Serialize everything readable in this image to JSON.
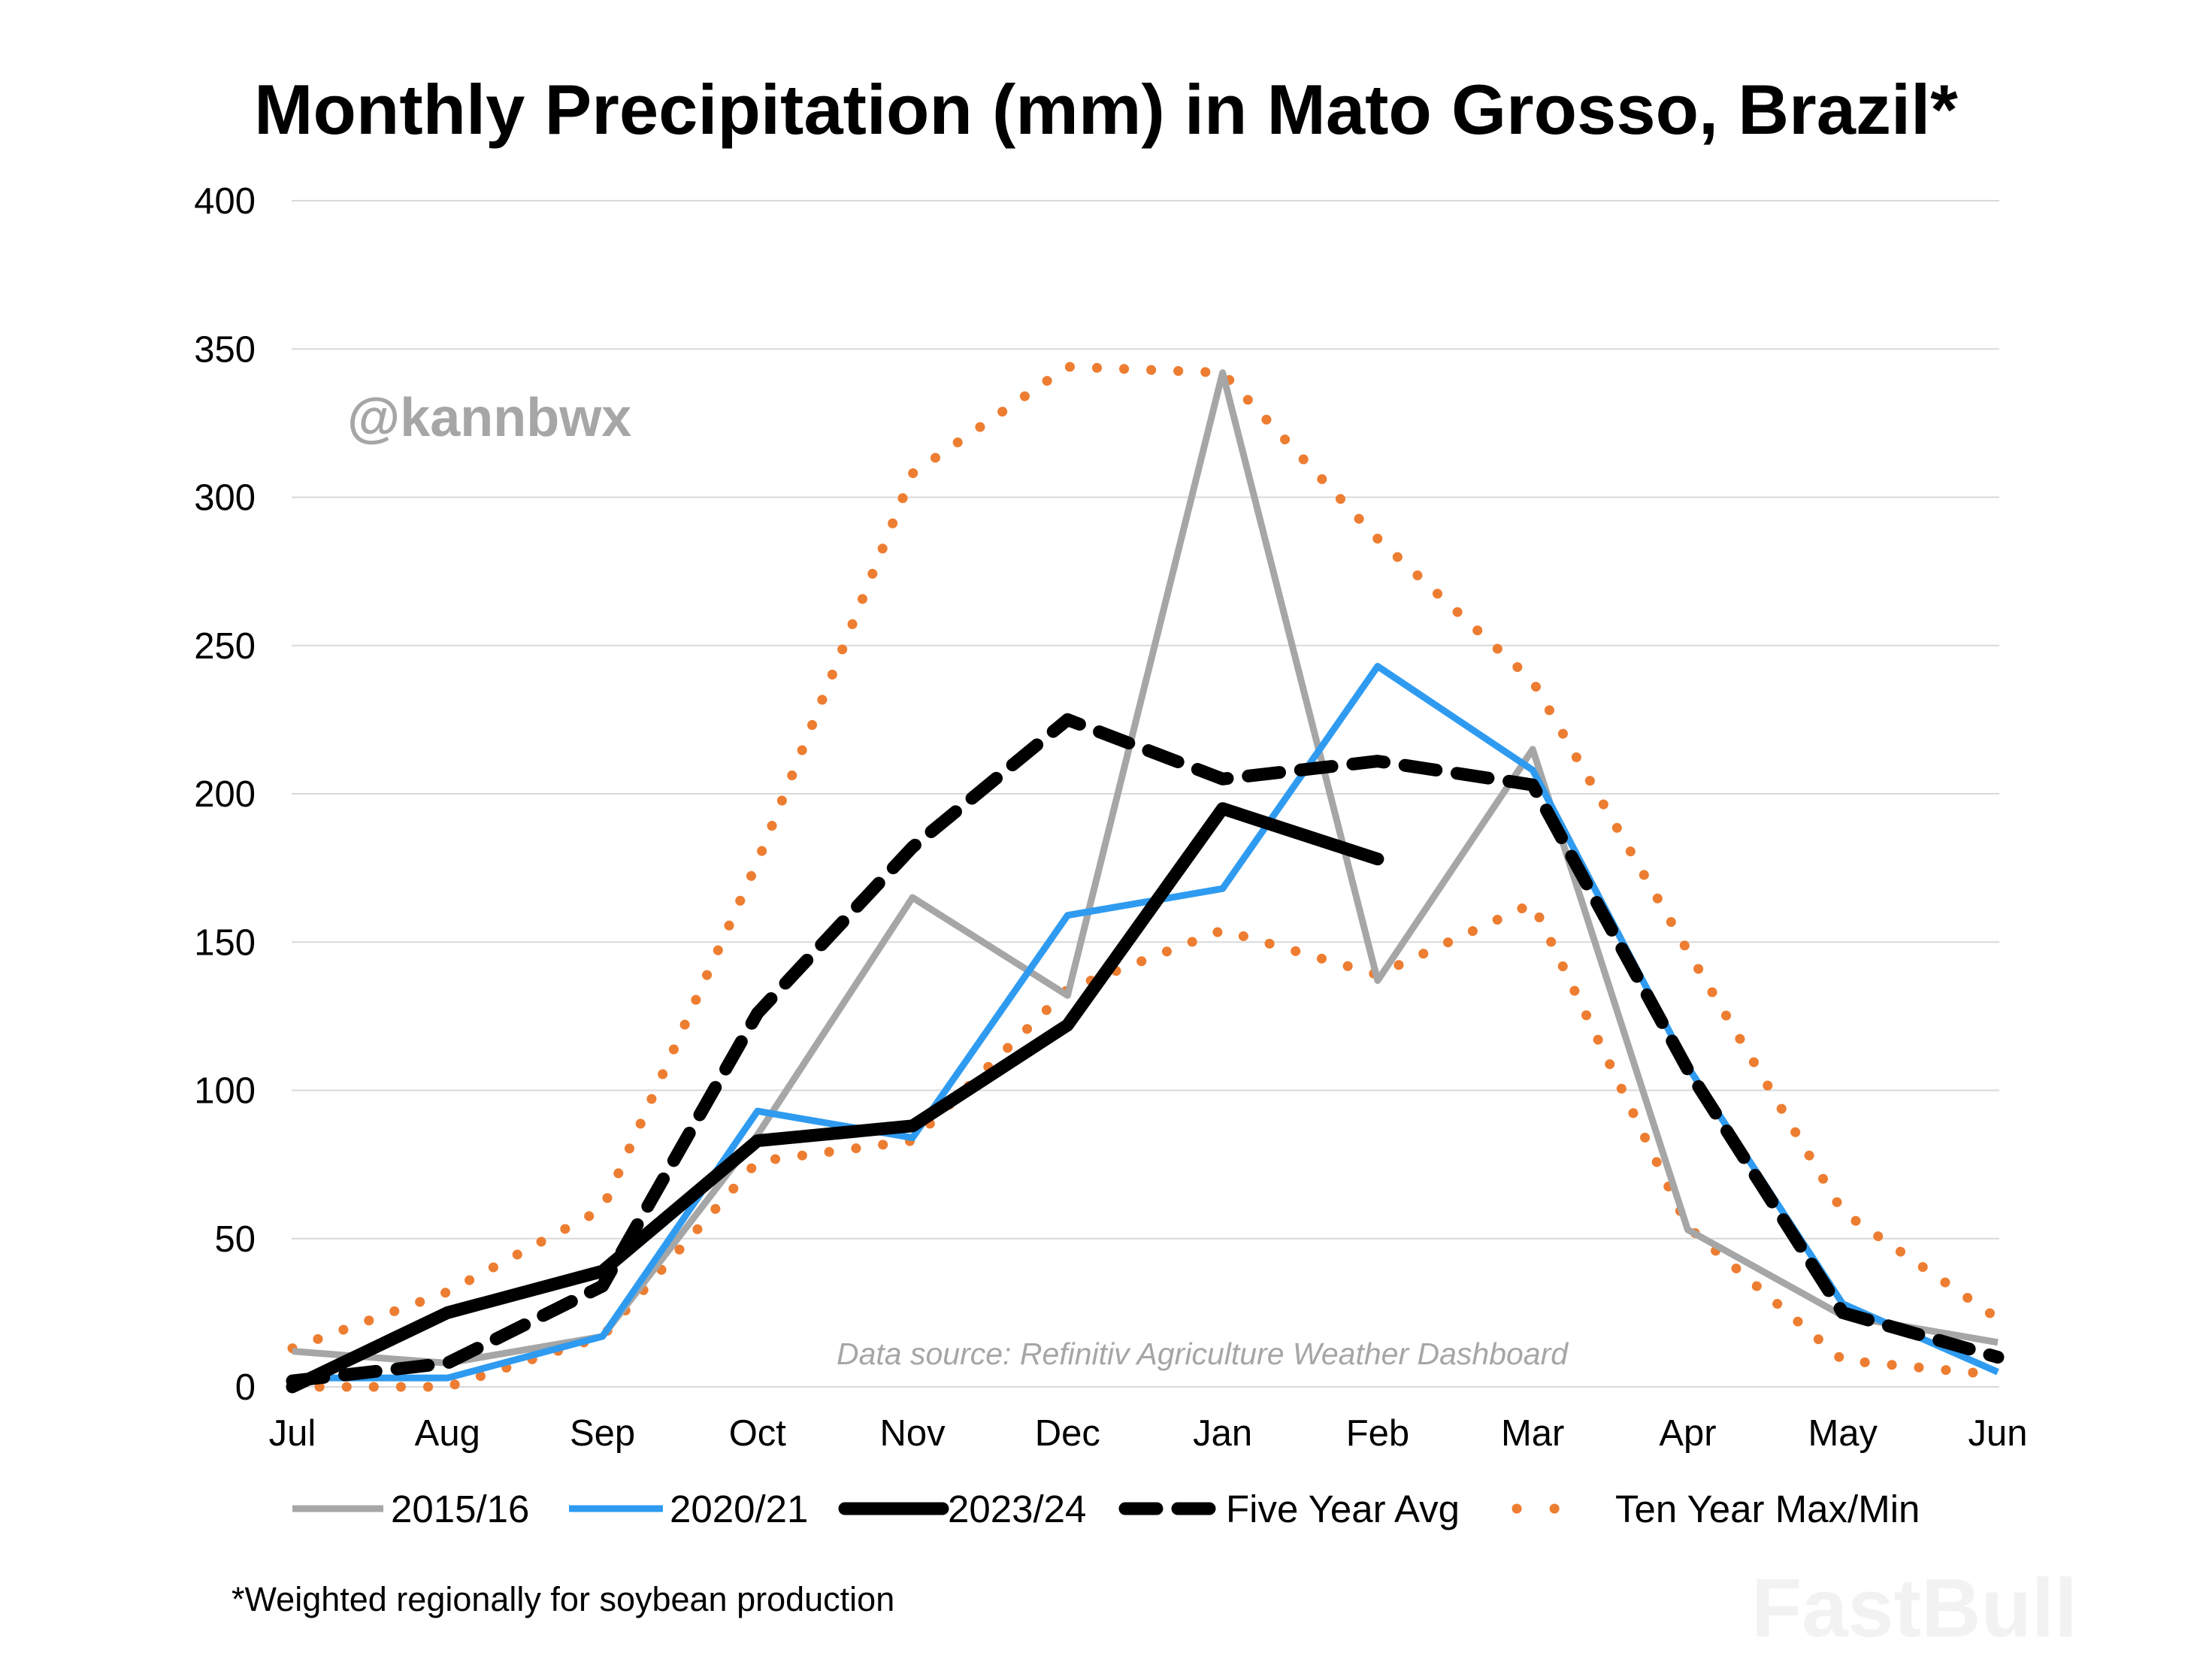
{
  "chart_data": {
    "type": "line",
    "title": "Monthly Precipitation (mm) in Mato Grosso, Brazil*",
    "xlabel": "",
    "ylabel": "",
    "categories": [
      "Jul",
      "Aug",
      "Sep",
      "Oct",
      "Nov",
      "Dec",
      "Jan",
      "Feb",
      "Mar",
      "Apr",
      "May",
      "Jun"
    ],
    "ylim": [
      0,
      400
    ],
    "yticks": [
      "0",
      "50",
      "100",
      "150",
      "200",
      "250",
      "300",
      "350",
      "400"
    ],
    "grid": true,
    "legend_position": "bottom",
    "series": [
      {
        "name": "2015/16",
        "color": "#a6a6a6",
        "style": "solid",
        "values": [
          12,
          8,
          17,
          85,
          165,
          132,
          342,
          137,
          215,
          53,
          24,
          15
        ]
      },
      {
        "name": "2020/21",
        "color": "#2f9bf0",
        "style": "solid",
        "values": [
          3,
          3,
          17,
          93,
          84,
          159,
          168,
          243,
          208,
          108,
          28,
          5
        ]
      },
      {
        "name": "2023/24",
        "color": "#000000",
        "style": "solid",
        "values": [
          0,
          25,
          39,
          83,
          88,
          122,
          195,
          178,
          null,
          null,
          null,
          null
        ]
      },
      {
        "name": "Five Year Avg",
        "color": "#000000",
        "style": "dashed",
        "values": [
          2,
          8,
          34,
          126,
          182,
          225,
          205,
          211,
          203,
          107,
          25,
          10
        ]
      },
      {
        "name": "Ten Year Max/Min",
        "color": "#ed7d31",
        "style": "dotted",
        "values": [
          13,
          32,
          60,
          177,
          308,
          344,
          342,
          286,
          238,
          147,
          59,
          23
        ]
      },
      {
        "name": "",
        "legend_of": "Ten Year Max/Min",
        "color": "#ed7d31",
        "style": "dotted",
        "values": [
          0,
          0,
          17,
          76,
          83,
          134,
          154,
          139,
          163,
          54,
          9,
          4
        ]
      }
    ],
    "annotations": {
      "handle": "@kannbwx",
      "source": "Data source: Refinitiv Agriculture Weather Dashboard",
      "footnote": "*Weighted regionally for soybean production"
    }
  },
  "watermark": "FastBull"
}
